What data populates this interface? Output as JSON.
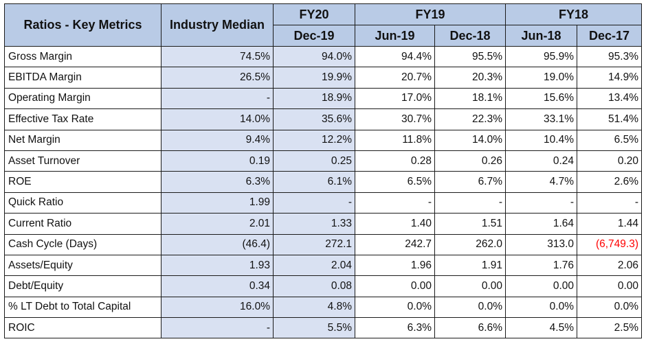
{
  "table": {
    "header": {
      "metric_col": "Ratios - Key Metrics",
      "median_col": "Industry Median",
      "fiscal_years": [
        {
          "label": "FY20",
          "periods": [
            "Dec-19"
          ]
        },
        {
          "label": "FY19",
          "periods": [
            "Jun-19",
            "Dec-18"
          ]
        },
        {
          "label": "FY18",
          "periods": [
            "Jun-18",
            "Dec-17"
          ]
        }
      ]
    },
    "rows": [
      {
        "metric": "Gross Margin",
        "median": "74.5%",
        "values": [
          "94.0%",
          "94.4%",
          "95.5%",
          "95.9%",
          "95.3%"
        ]
      },
      {
        "metric": "EBITDA Margin",
        "median": "26.5%",
        "values": [
          "19.9%",
          "20.7%",
          "20.3%",
          "19.0%",
          "14.9%"
        ]
      },
      {
        "metric": "Operating Margin",
        "median": "-",
        "values": [
          "18.9%",
          "17.0%",
          "18.1%",
          "15.6%",
          "13.4%"
        ]
      },
      {
        "metric": "Effective Tax Rate",
        "median": "14.0%",
        "values": [
          "35.6%",
          "30.7%",
          "22.3%",
          "33.1%",
          "51.4%"
        ]
      },
      {
        "metric": "Net Margin",
        "median": "9.4%",
        "values": [
          "12.2%",
          "11.8%",
          "14.0%",
          "10.4%",
          "6.5%"
        ]
      },
      {
        "metric": "Asset Turnover",
        "median": "0.19",
        "values": [
          "0.25",
          "0.28",
          "0.26",
          "0.24",
          "0.20"
        ]
      },
      {
        "metric": "ROE",
        "median": "6.3%",
        "values": [
          "6.1%",
          "6.5%",
          "6.7%",
          "4.7%",
          "2.6%"
        ]
      },
      {
        "metric": "Quick Ratio",
        "median": "1.99",
        "values": [
          "-",
          "-",
          "-",
          "-",
          "-"
        ]
      },
      {
        "metric": "Current Ratio",
        "median": "2.01",
        "values": [
          "1.33",
          "1.40",
          "1.51",
          "1.64",
          "1.44"
        ]
      },
      {
        "metric": "Cash Cycle (Days)",
        "median": "(46.4)",
        "values": [
          "272.1",
          "242.7",
          "262.0",
          "313.0",
          "(6,749.3)"
        ]
      },
      {
        "metric": "Assets/Equity",
        "median": "1.93",
        "values": [
          "2.04",
          "1.96",
          "1.91",
          "1.76",
          "2.06"
        ]
      },
      {
        "metric": "Debt/Equity",
        "median": "0.34",
        "values": [
          "0.08",
          "0.00",
          "0.00",
          "0.00",
          "0.00"
        ]
      },
      {
        "metric": "% LT Debt to Total Capital",
        "median": "16.0%",
        "values": [
          "4.8%",
          "0.0%",
          "0.0%",
          "0.0%",
          "0.0%"
        ]
      },
      {
        "metric": "ROIC",
        "median": "-",
        "values": [
          "5.5%",
          "6.3%",
          "6.6%",
          "4.5%",
          "2.5%"
        ]
      }
    ],
    "highlight": {
      "row": 9,
      "col": 4,
      "color": "#ff0000"
    },
    "colors": {
      "header_bg": "#b9cbe6",
      "shaded_bg": "#d9e1f2",
      "border": "#1a1a1a"
    }
  }
}
